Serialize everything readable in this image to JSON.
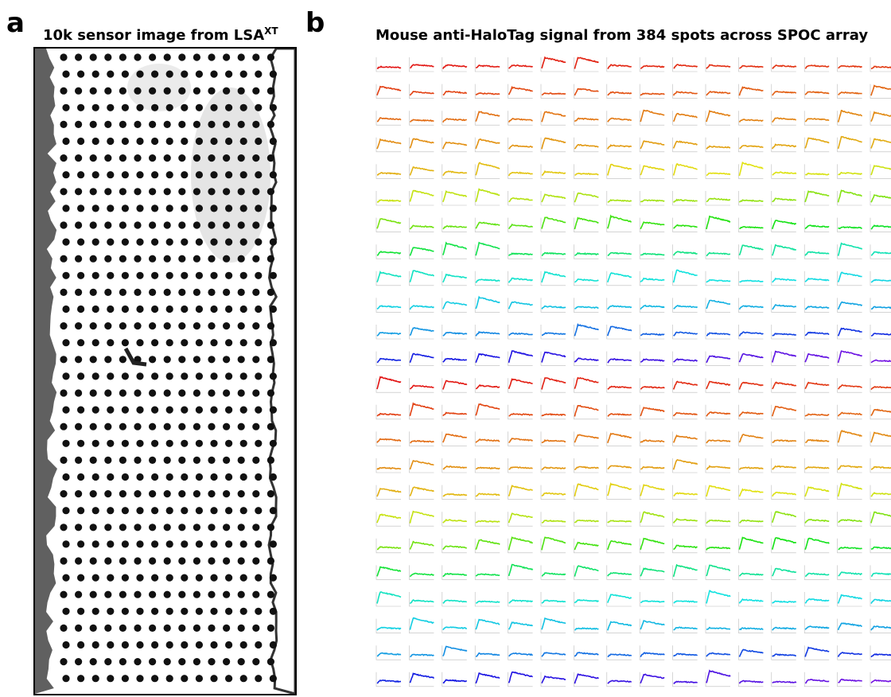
{
  "panel_a": {
    "label": "a",
    "title": "10k sensor image from LSA",
    "title_superscript": "XT"
  },
  "panel_b": {
    "label": "b",
    "title": "Mouse anti-HaloTag signal from 384 spots across SPOC array"
  }
}
